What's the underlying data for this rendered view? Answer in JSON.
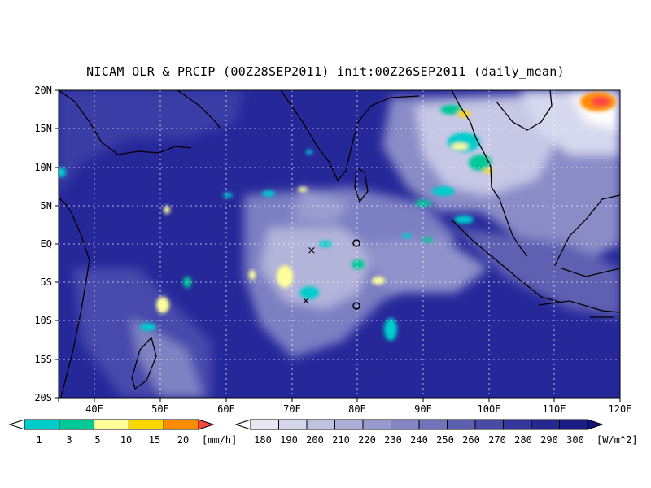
{
  "title": "NICAM OLR & PRCIP (00Z28SEP2011) init:00Z26SEP2011 (daily_mean)",
  "map": {
    "lon_range": [
      35,
      120
    ],
    "lat_range": [
      -20,
      20
    ],
    "lon_ticks": [
      "40E",
      "50E",
      "60E",
      "70E",
      "80E",
      "90E",
      "100E",
      "110E",
      "120E"
    ],
    "lat_ticks": [
      "20N",
      "15N",
      "10N",
      "5N",
      "EQ",
      "5S",
      "10S",
      "15S",
      "20S"
    ],
    "gridlines": true,
    "markers": [
      {
        "symbol": "x",
        "lon": 73.3,
        "lat": -0.8
      },
      {
        "symbol": "x",
        "lon": 72.3,
        "lat": -7.3
      },
      {
        "symbol": "o",
        "lon": 80.0,
        "lat": 0.0
      },
      {
        "symbol": "o",
        "lon": 80.0,
        "lat": -8.0
      }
    ]
  },
  "precip_colorbar": {
    "labels": [
      "1",
      "3",
      "5",
      "10",
      "15",
      "20"
    ],
    "unit": "[mm/h]",
    "colors": [
      "#00cccc",
      "#00c896",
      "#ffff99",
      "#ffd700",
      "#ff8c00",
      "#ff4444"
    ]
  },
  "olr_colorbar": {
    "labels": [
      "180",
      "190",
      "200",
      "210",
      "220",
      "230",
      "240",
      "250",
      "260",
      "270",
      "280",
      "290",
      "300"
    ],
    "unit": "[W/m^2]",
    "colors": [
      "#ffffff",
      "#e8e8f4",
      "#d4d6ec",
      "#c0c2e2",
      "#acaed8",
      "#989ace",
      "#8486c4",
      "#7072ba",
      "#5c5eb0",
      "#484aa6",
      "#34369c",
      "#262890",
      "#1a1c84",
      "#10127a"
    ]
  }
}
